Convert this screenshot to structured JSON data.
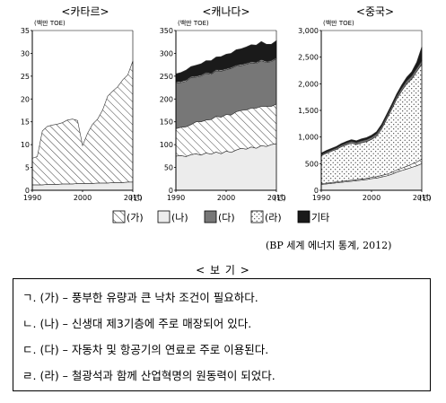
{
  "chart_data": [
    {
      "type": "area",
      "title": "<카타르>",
      "unit_label": "(백만 TOE)",
      "x_unit_label": "(년)",
      "xlim": [
        1990,
        2010
      ],
      "ylim": [
        0,
        35
      ],
      "y_ticks": [
        "0",
        "5",
        "10",
        "15",
        "20",
        "25",
        "30",
        "35"
      ],
      "x_ticks": [
        "1990",
        "2000",
        "2010"
      ],
      "x": [
        1990,
        1991,
        1992,
        1993,
        1994,
        1995,
        1996,
        1997,
        1998,
        1999,
        2000,
        2001,
        2002,
        2003,
        2004,
        2005,
        2006,
        2007,
        2008,
        2009,
        2010
      ],
      "series": [
        {
          "name": "(나)",
          "pattern": "light",
          "values": [
            1.2,
            1.2,
            1.2,
            1.3,
            1.3,
            1.3,
            1.4,
            1.4,
            1.4,
            1.5,
            1.5,
            1.5,
            1.5,
            1.6,
            1.6,
            1.6,
            1.7,
            1.7,
            1.7,
            1.8,
            1.8
          ]
        },
        {
          "name": "(가)",
          "pattern": "hatch",
          "values": [
            5.8,
            6.2,
            11.8,
            12.7,
            13.0,
            13.2,
            13.4,
            14.0,
            14.2,
            13.8,
            8.3,
            11.0,
            13.0,
            14.0,
            16.0,
            19.0,
            20.0,
            21.0,
            22.5,
            23.5,
            26.5
          ]
        }
      ]
    },
    {
      "type": "area",
      "title": "<캐나다>",
      "unit_label": "(백만 TOE)",
      "x_unit_label": "(년)",
      "xlim": [
        1990,
        2010
      ],
      "ylim": [
        0,
        350
      ],
      "y_ticks": [
        "0",
        "50",
        "100",
        "150",
        "200",
        "250",
        "300",
        "350"
      ],
      "x_ticks": [
        "1990",
        "2000",
        "2010"
      ],
      "x": [
        1990,
        1991,
        1992,
        1993,
        1994,
        1995,
        1996,
        1997,
        1998,
        1999,
        2000,
        2001,
        2002,
        2003,
        2004,
        2005,
        2006,
        2007,
        2008,
        2009,
        2010
      ],
      "series": [
        {
          "name": "(나)",
          "pattern": "light",
          "values": [
            75,
            76,
            74,
            78,
            80,
            77,
            82,
            79,
            84,
            80,
            86,
            83,
            88,
            92,
            90,
            95,
            92,
            98,
            96,
            100,
            102
          ]
        },
        {
          "name": "(가)",
          "pattern": "hatch",
          "values": [
            60,
            62,
            65,
            66,
            70,
            73,
            72,
            76,
            78,
            80,
            80,
            82,
            84,
            83,
            86,
            85,
            88,
            86,
            88,
            84,
            87
          ]
        },
        {
          "name": "(다)",
          "pattern": "dark",
          "values": [
            100,
            98,
            100,
            103,
            98,
            100,
            102,
            99,
            100,
            101,
            98,
            102,
            100,
            98,
            100,
            99,
            98,
            100,
            96,
            98,
            99
          ]
        },
        {
          "name": "(라)",
          "pattern": "dots",
          "values": [
            2,
            2,
            2,
            2,
            2,
            2,
            2,
            2,
            2,
            2,
            2,
            2,
            2,
            2,
            2,
            2,
            2,
            2,
            2,
            2,
            2
          ]
        },
        {
          "name": "기타",
          "pattern": "black",
          "values": [
            18,
            20,
            22,
            22,
            24,
            25,
            26,
            28,
            28,
            30,
            32,
            31,
            34,
            35,
            36,
            38,
            38,
            40,
            38,
            36,
            38
          ]
        }
      ]
    },
    {
      "type": "area",
      "title": "<중국>",
      "unit_label": "(백만 TOE)",
      "x_unit_label": "(년)",
      "xlim": [
        1990,
        2010
      ],
      "ylim": [
        0,
        3000
      ],
      "y_ticks": [
        "0",
        "500",
        "1,000",
        "1,500",
        "2,000",
        "2,500",
        "3,000"
      ],
      "x_ticks": [
        "1990",
        "2000",
        "2010"
      ],
      "x": [
        1990,
        1991,
        1992,
        1993,
        1994,
        1995,
        1996,
        1997,
        1998,
        1999,
        2000,
        2001,
        2002,
        2003,
        2004,
        2005,
        2006,
        2007,
        2008,
        2009,
        2010
      ],
      "series": [
        {
          "name": "(나)",
          "pattern": "light",
          "values": [
            110,
            120,
            130,
            140,
            150,
            160,
            170,
            180,
            190,
            200,
            220,
            230,
            250,
            270,
            300,
            340,
            370,
            400,
            430,
            460,
            500
          ]
        },
        {
          "name": "(가)",
          "pattern": "hatch",
          "values": [
            15,
            15,
            16,
            17,
            18,
            19,
            20,
            21,
            22,
            23,
            25,
            27,
            30,
            32,
            36,
            40,
            45,
            50,
            60,
            70,
            90
          ]
        },
        {
          "name": "(라)",
          "pattern": "dots",
          "values": [
            525,
            560,
            585,
            610,
            650,
            675,
            695,
            660,
            680,
            690,
            710,
            760,
            870,
            1030,
            1180,
            1330,
            1450,
            1550,
            1600,
            1700,
            1780
          ]
        },
        {
          "name": "(다)",
          "pattern": "dark",
          "values": [
            20,
            22,
            24,
            26,
            28,
            30,
            32,
            34,
            36,
            38,
            40,
            42,
            44,
            46,
            48,
            50,
            52,
            54,
            56,
            58,
            60
          ]
        },
        {
          "name": "기타",
          "pattern": "black",
          "values": [
            30,
            30,
            30,
            32,
            32,
            34,
            35,
            36,
            37,
            38,
            40,
            42,
            44,
            46,
            48,
            50,
            60,
            70,
            80,
            120,
            260
          ]
        }
      ]
    }
  ],
  "legend": [
    {
      "label": "(가)",
      "pattern": "hatch"
    },
    {
      "label": "(나)",
      "pattern": "light"
    },
    {
      "label": "(다)",
      "pattern": "dark"
    },
    {
      "label": "(라)",
      "pattern": "dots"
    },
    {
      "label": "기타",
      "pattern": "black"
    }
  ],
  "source": "(BP 세계 에너지 통계, 2012)",
  "bogi": {
    "title": "< 보 기 >",
    "items": [
      "ㄱ. (가) – 풍부한 유량과 큰 낙차 조건이 필요하다.",
      "ㄴ. (나) – 신생대 제3기층에 주로 매장되어 있다.",
      "ㄷ. (다) – 자동차 및 항공기의 연료로 주로 이용된다.",
      "ㄹ. (라) – 철광석과 함께 산업혁명의 원동력이 되었다."
    ]
  },
  "colors": {
    "light": "#ececec",
    "hatch": "#ffffff",
    "dark": "#777777",
    "dots": "#ffffff",
    "black": "#1a1a1a"
  }
}
